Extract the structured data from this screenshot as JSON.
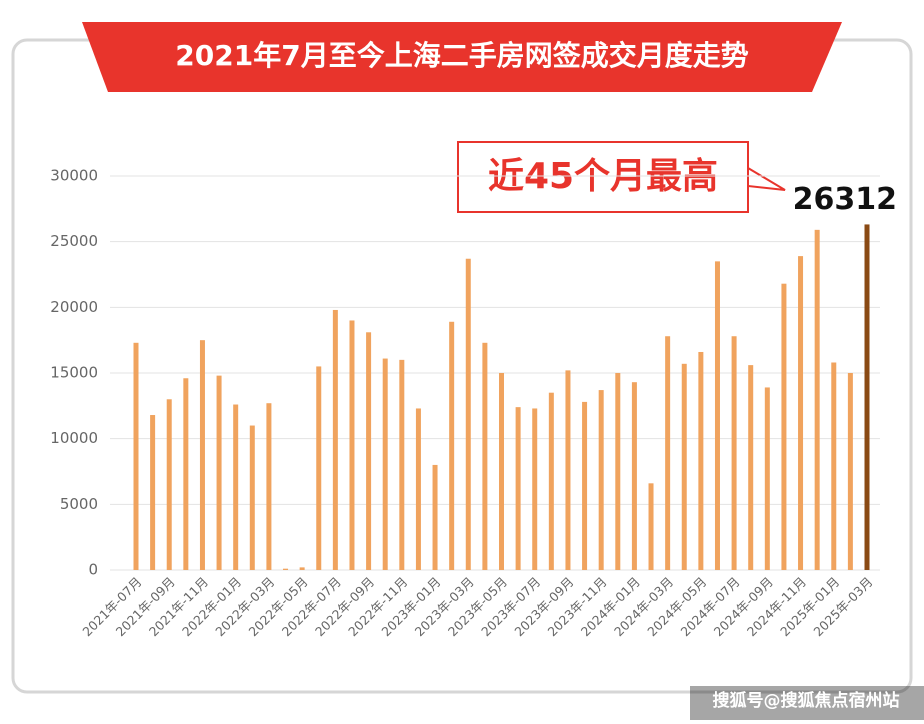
{
  "chart_data": {
    "type": "bar",
    "title": "2021年7月至今上海二手房网签成交月度走势",
    "annotation": "近45个月最高",
    "categories": [
      "2021年-07月",
      null,
      "2021年-09月",
      null,
      "2021年-11月",
      null,
      "2022年-01月",
      null,
      "2022年-03月",
      null,
      "2022年-05月",
      null,
      "2022年-07月",
      null,
      "2022年-09月",
      null,
      "2022年-11月",
      null,
      "2023年-01月",
      null,
      "2023年-03月",
      null,
      "2023年-05月",
      null,
      "2023年-07月",
      null,
      "2023年-09月",
      null,
      "2023年-11月",
      null,
      "2024年-01月",
      null,
      "2024年-03月",
      null,
      "2024年-05月",
      null,
      "2024年-07月",
      null,
      "2024年-09月",
      null,
      "2024年-11月",
      null,
      "2025年-01月",
      null,
      "2025年-03月"
    ],
    "values": [
      17300,
      11800,
      13000,
      14600,
      17500,
      14800,
      12600,
      11000,
      12700,
      100,
      200,
      15500,
      19800,
      19000,
      18100,
      16100,
      16000,
      12300,
      8000,
      18900,
      23700,
      17300,
      15000,
      12400,
      12300,
      13500,
      15200,
      12800,
      13700,
      15000,
      14300,
      6600,
      17800,
      15700,
      16600,
      23500,
      17800,
      15600,
      13900,
      21800,
      23900,
      25900,
      15800,
      15000,
      26312
    ],
    "color": "#f0a35e",
    "highlight_color": "#8a4a14",
    "ylim": [
      0,
      30000
    ],
    "yticks": [
      0,
      5000,
      10000,
      15000,
      20000,
      25000,
      30000
    ],
    "grid": true
  },
  "footer": "搜狐号@搜狐焦点宿州站"
}
